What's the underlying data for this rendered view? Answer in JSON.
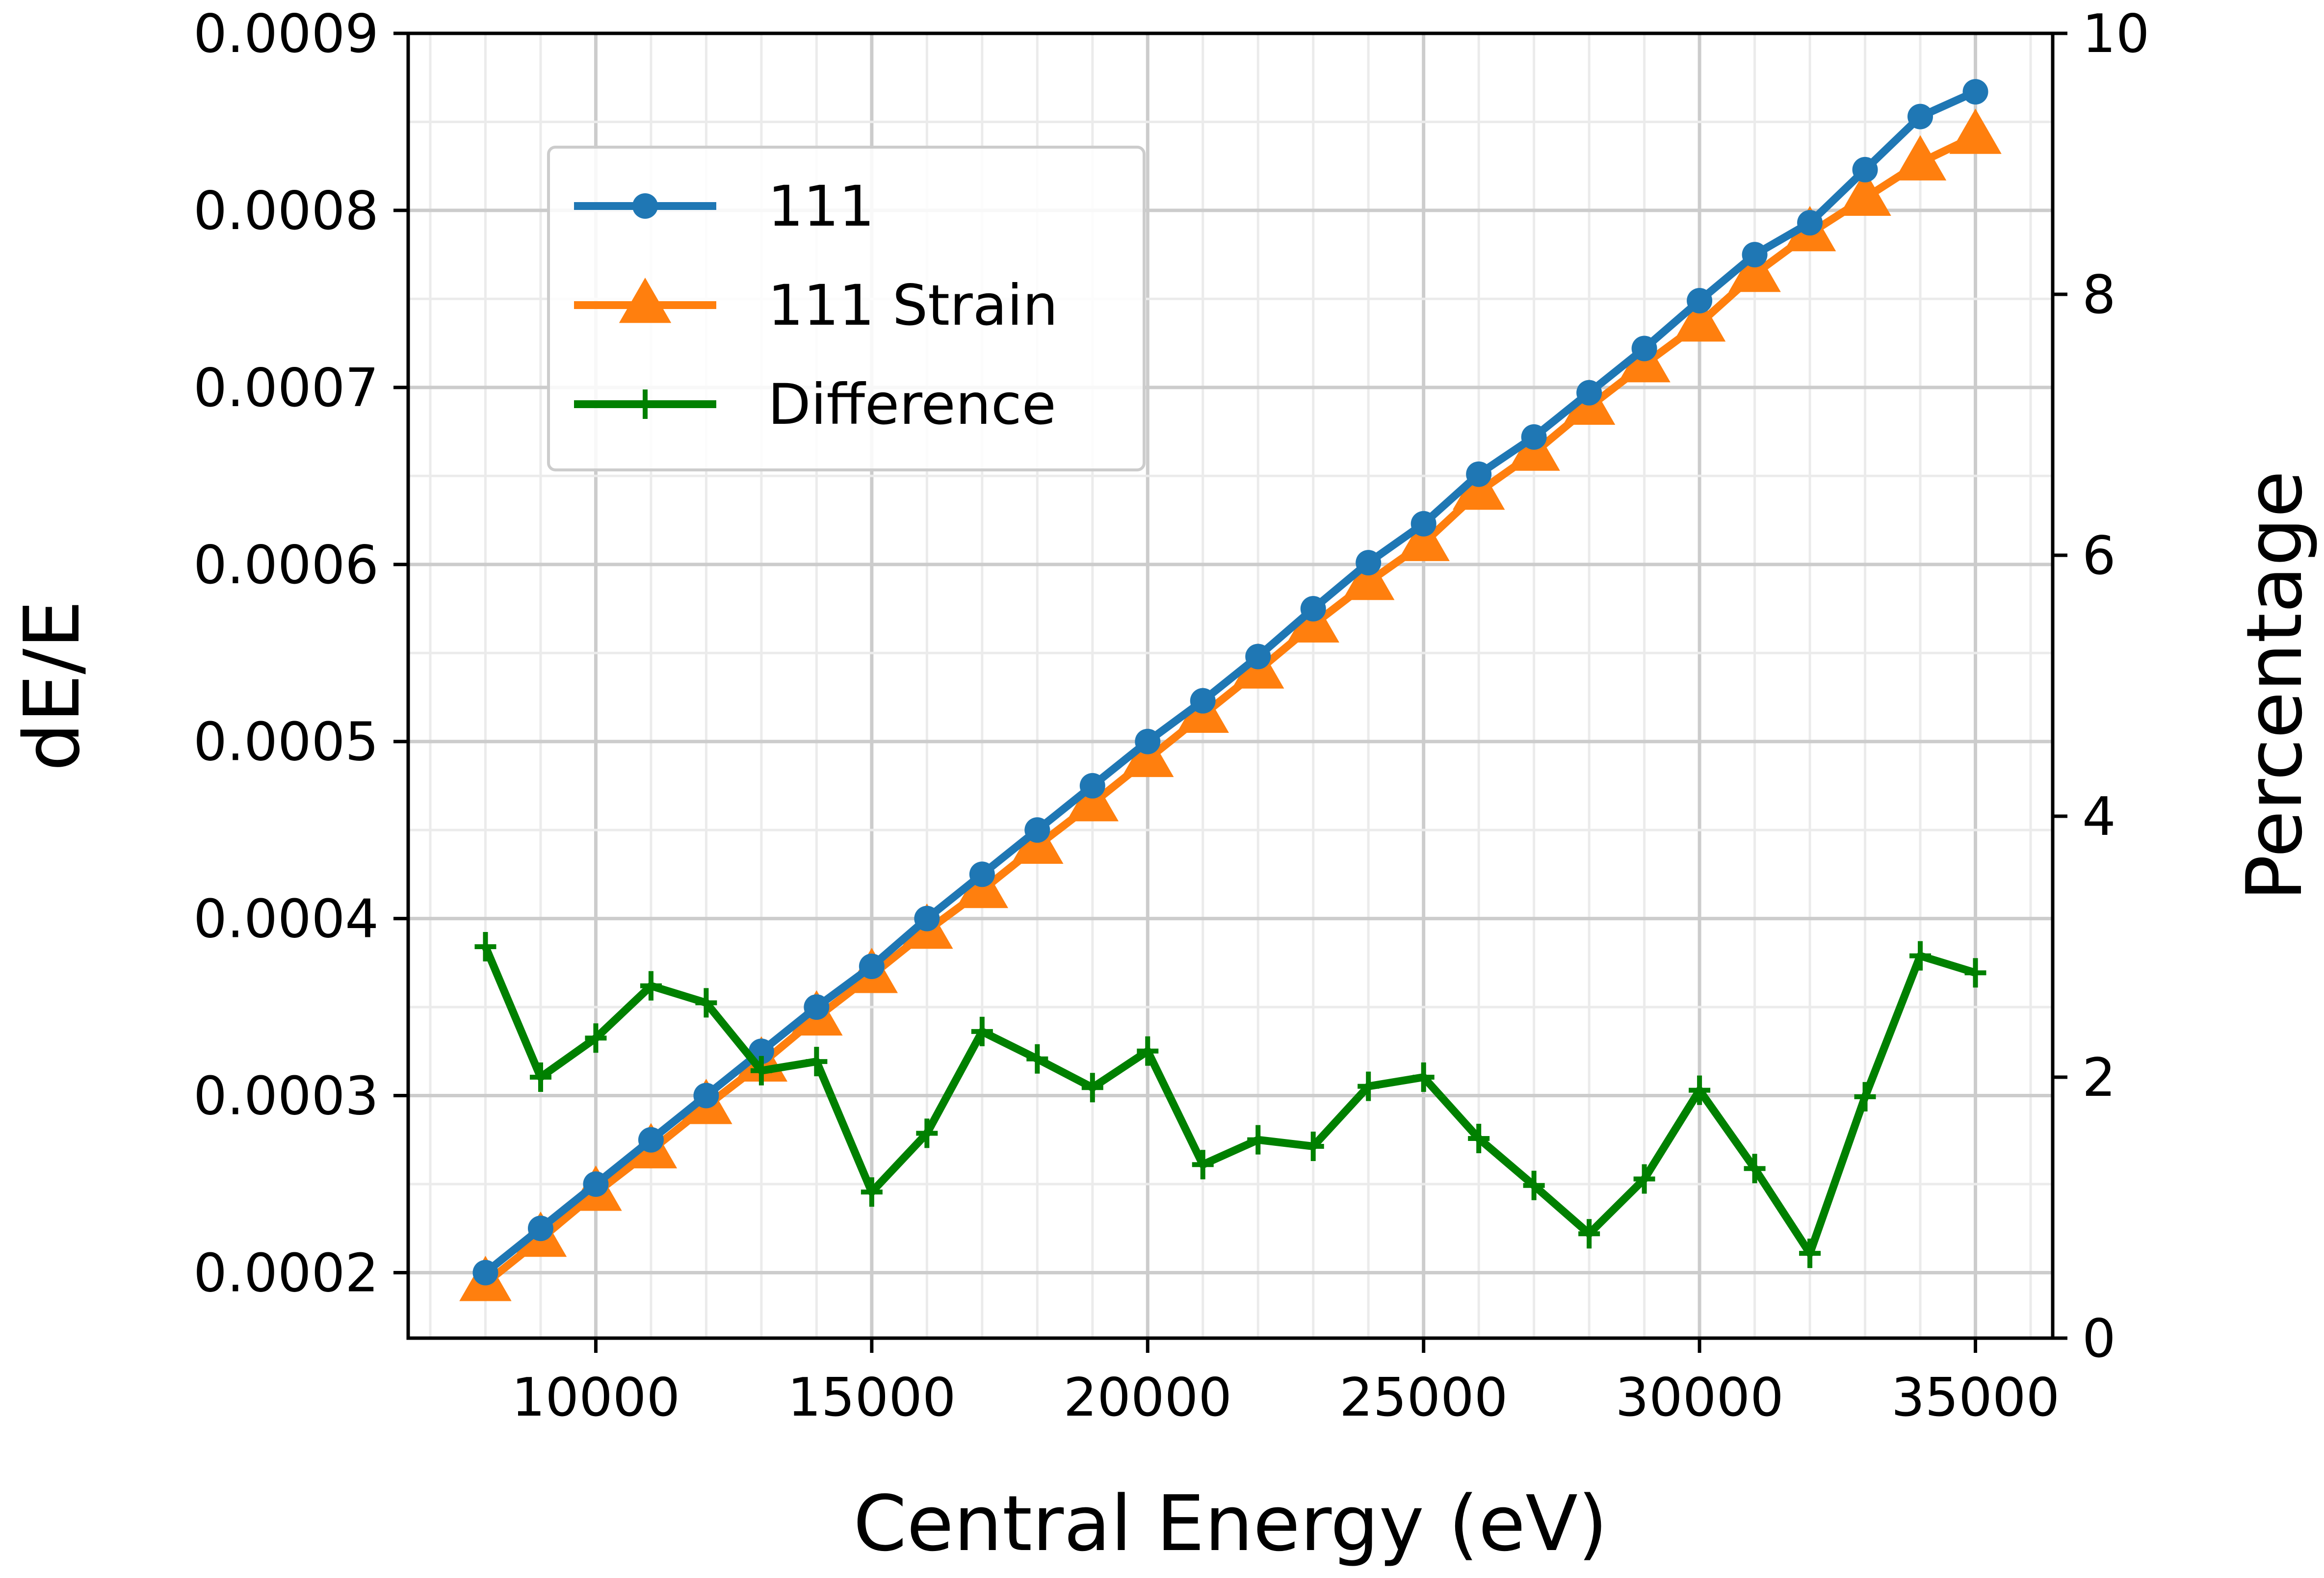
{
  "chart_data": {
    "type": "line",
    "xlabel": "Central Energy (eV)",
    "ylabel": "dE/E",
    "y2label": "Percentage",
    "xlim": [
      6600,
      36400
    ],
    "ylim": [
      0.000163,
      0.0009
    ],
    "y2lim": [
      0,
      10
    ],
    "grid": true,
    "legend_position": "top-left",
    "xticks": [
      10000,
      15000,
      20000,
      25000,
      30000,
      35000
    ],
    "xtick_labels": [
      "10000",
      "15000",
      "20000",
      "25000",
      "30000",
      "35000"
    ],
    "yticks": [
      0.0002,
      0.0003,
      0.0004,
      0.0005,
      0.0006,
      0.0007,
      0.0008,
      0.0009
    ],
    "ytick_labels": [
      "0.0002",
      "0.0003",
      "0.0004",
      "0.0005",
      "0.0006",
      "0.0007",
      "0.0008",
      "0.0009"
    ],
    "y2ticks": [
      0,
      2,
      4,
      6,
      8,
      10
    ],
    "y2tick_labels": [
      "0",
      "2",
      "4",
      "6",
      "8",
      "10"
    ],
    "x": [
      8000,
      9000,
      10000,
      11000,
      12000,
      13000,
      14000,
      15000,
      16000,
      17000,
      18000,
      19000,
      20000,
      21000,
      22000,
      23000,
      24000,
      25000,
      26000,
      27000,
      28000,
      29000,
      30000,
      31000,
      32000,
      33000,
      34000,
      35000
    ],
    "series": [
      {
        "name": "111",
        "axis": "left",
        "color": "#1f77b4",
        "marker": "circle",
        "values": [
          0.0002,
          0.000225,
          0.00025,
          0.000275,
          0.0003,
          0.000325,
          0.00035,
          0.000373,
          0.0004,
          0.000425,
          0.00045,
          0.000475,
          0.0005,
          0.000523,
          0.000548,
          0.000575,
          0.000601,
          0.000623,
          0.000651,
          0.000672,
          0.000697,
          0.000722,
          0.000749,
          0.000775,
          0.000793,
          0.000823,
          0.000853,
          0.000867
        ]
      },
      {
        "name": "111 Strain",
        "axis": "left",
        "color": "#ff7f0e",
        "marker": "triangle",
        "values": [
          0.000194,
          0.000219,
          0.000245,
          0.000269,
          0.000294,
          0.000318,
          0.000344,
          0.000368,
          0.000393,
          0.000416,
          0.000441,
          0.000465,
          0.00049,
          0.000515,
          0.00054,
          0.000566,
          0.00059,
          0.000612,
          0.000641,
          0.000663,
          0.000689,
          0.000713,
          0.000736,
          0.000764,
          0.000787,
          0.000807,
          0.000827,
          0.000842
        ]
      },
      {
        "name": "Difference",
        "axis": "right",
        "color": "#008000",
        "marker": "plus",
        "values": [
          3.0,
          2.0,
          2.3,
          2.7,
          2.57,
          2.05,
          2.12,
          1.12,
          1.57,
          2.35,
          2.14,
          1.92,
          2.2,
          1.33,
          1.52,
          1.47,
          1.93,
          2.0,
          1.53,
          1.17,
          0.8,
          1.22,
          1.9,
          1.3,
          0.65,
          1.85,
          2.93,
          2.8
        ]
      }
    ]
  }
}
